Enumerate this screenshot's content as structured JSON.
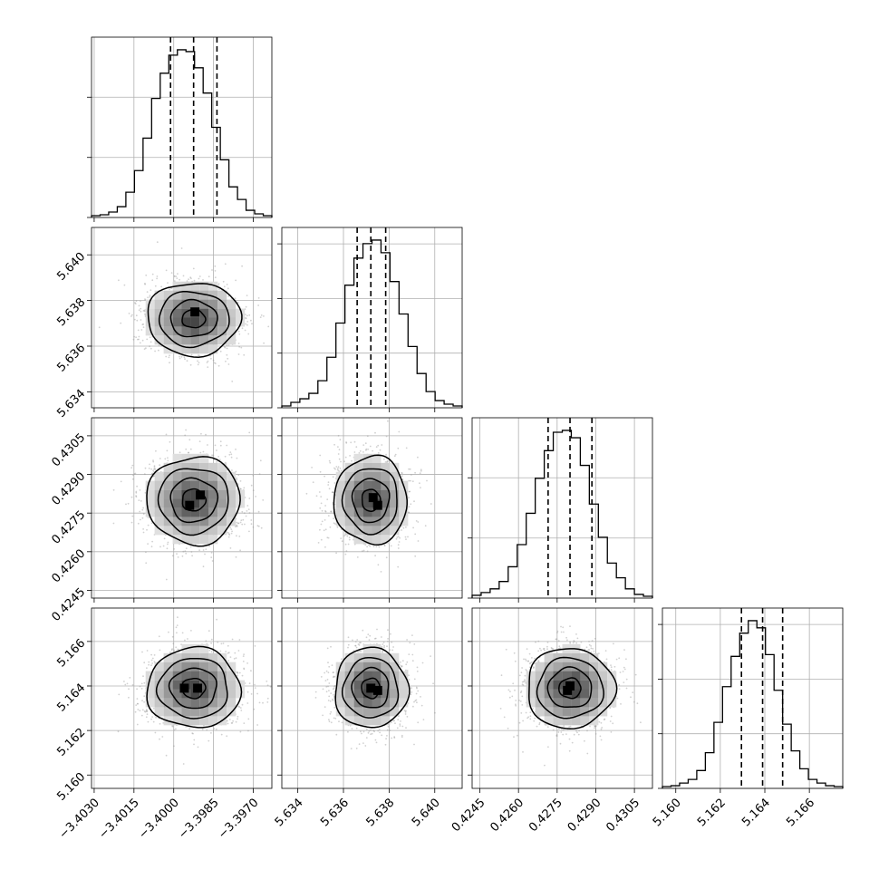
{
  "chart_data": {
    "type": "corner",
    "parameters": [
      {
        "index": 0,
        "ticks": [
          -3.403,
          -3.4015,
          -3.4,
          -3.3985,
          -3.397
        ],
        "tick_labels": [
          "−3.4030",
          "−3.4015",
          "−3.4000",
          "−3.3985",
          "−3.3970"
        ],
        "range": [
          -3.4031,
          -3.3963
        ],
        "quantiles": [
          -3.40012,
          -3.39925,
          -3.39837
        ],
        "histogram": [
          1,
          1.5,
          3,
          6,
          14,
          26,
          44,
          66,
          80,
          90,
          93,
          92,
          83,
          69,
          50,
          32,
          17,
          10,
          4,
          2,
          1
        ],
        "hist_yticks": [
          0.0,
          0.333,
          0.667
        ]
      },
      {
        "index": 1,
        "ticks": [
          5.634,
          5.636,
          5.638,
          5.64
        ],
        "tick_labels": [
          "5.634",
          "5.636",
          "5.638",
          "5.640"
        ],
        "range": [
          5.6333,
          5.6412
        ],
        "quantiles": [
          5.6366,
          5.6372,
          5.63785
        ],
        "histogram": [
          1,
          3,
          5,
          8,
          15,
          28,
          47,
          68,
          83,
          91,
          93,
          86,
          70,
          52,
          34,
          19,
          9,
          4,
          2,
          1
        ],
        "hist_yticks": [
          0.0,
          0.303,
          0.606,
          0.909
        ]
      },
      {
        "index": 2,
        "ticks": [
          0.4245,
          0.426,
          0.4275,
          0.429,
          0.4305
        ],
        "tick_labels": [
          "0.4245",
          "0.4260",
          "0.4275",
          "0.4290",
          "0.4305"
        ],
        "range": [
          0.4242,
          0.4312
        ],
        "quantiles": [
          0.42715,
          0.428,
          0.42885
        ],
        "histogram": [
          1.5,
          3,
          5,
          9,
          17,
          29,
          46,
          65,
          80,
          90,
          91,
          87,
          72,
          51,
          33,
          19,
          11,
          5,
          2,
          1
        ],
        "hist_yticks": [
          0.0,
          0.333,
          0.667
        ]
      },
      {
        "index": 3,
        "ticks": [
          5.16,
          5.162,
          5.164,
          5.166
        ],
        "tick_labels": [
          "5.160",
          "5.162",
          "5.164",
          "5.166"
        ],
        "range": [
          5.1594,
          5.1675
        ],
        "quantiles": [
          5.16295,
          5.1639,
          5.1648
        ],
        "histogram": [
          1,
          1.5,
          3,
          5,
          10,
          20,
          37,
          57,
          74,
          87,
          94,
          90,
          75,
          55,
          36,
          21,
          11,
          5,
          3,
          1.5,
          1
        ],
        "hist_yticks": [
          0.0,
          0.303,
          0.606,
          0.909
        ]
      }
    ],
    "pairs": [
      {
        "x": 0,
        "y": 1,
        "center": [
          -3.39925,
          5.6372
        ],
        "spread": [
          0.00088,
          0.0008
        ],
        "peak_cells": [
          [
            -3.3992,
            5.6375
          ]
        ]
      },
      {
        "x": 0,
        "y": 2,
        "center": [
          -3.39925,
          0.428
        ],
        "spread": [
          0.00088,
          0.00085
        ],
        "peak_cells": [
          [
            -3.3994,
            0.4278
          ],
          [
            -3.399,
            0.4282
          ]
        ]
      },
      {
        "x": 1,
        "y": 2,
        "center": [
          5.6372,
          0.428
        ],
        "spread": [
          0.0008,
          0.00085
        ],
        "peak_cells": [
          [
            5.6375,
            0.4278
          ],
          [
            5.6373,
            0.4281
          ]
        ]
      },
      {
        "x": 0,
        "y": 3,
        "center": [
          -3.39925,
          5.1639
        ],
        "spread": [
          0.00088,
          0.0009
        ],
        "peak_cells": [
          [
            -3.3996,
            5.1639
          ],
          [
            -3.3991,
            5.1639
          ]
        ]
      },
      {
        "x": 1,
        "y": 3,
        "center": [
          5.6372,
          5.1639
        ],
        "spread": [
          0.0008,
          0.0009
        ],
        "peak_cells": [
          [
            5.6375,
            5.1638
          ],
          [
            5.6372,
            5.1639
          ]
        ]
      },
      {
        "x": 2,
        "y": 3,
        "center": [
          0.428,
          5.1639
        ],
        "spread": [
          0.00085,
          0.0009
        ],
        "peak_cells": [
          [
            0.428,
            5.164
          ],
          [
            0.4279,
            5.1638
          ]
        ]
      }
    ],
    "contour_levels_sigma": [
      0.5,
      1.0,
      1.5,
      2.0
    ],
    "grid": true,
    "colors": {
      "line": "#000000",
      "grid": "#b0b0b0",
      "scatter": "#9a9a9a"
    }
  }
}
